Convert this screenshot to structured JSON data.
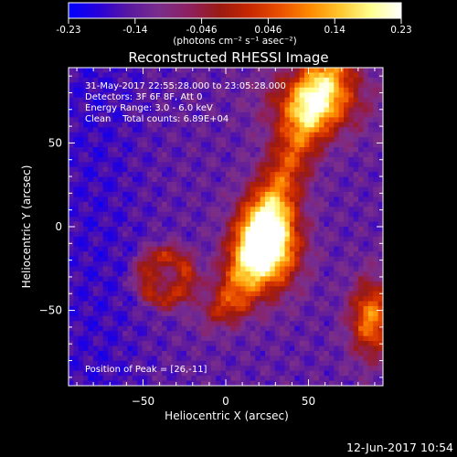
{
  "colorbar": {
    "ticks": [
      "-0.23",
      "-0.14",
      "-0.046",
      "0.046",
      "0.14",
      "0.23"
    ],
    "unit_label": "(photons cm⁻² s⁻¹ asec⁻²)",
    "colors": [
      "#0000ff",
      "#2800d8",
      "#5a18a0",
      "#7a2e8c",
      "#8e2060",
      "#9a1a12",
      "#c82800",
      "#ea5000",
      "#ff8a00",
      "#ffc830",
      "#ffff90",
      "#ffffff"
    ]
  },
  "chart_data": {
    "type": "heatmap",
    "title": "Reconstructed RHESSI Image",
    "xlabel": "Heliocentric X (arcsec)",
    "ylabel": "Heliocentric Y (arcsec)",
    "xlim": [
      -95,
      95
    ],
    "ylim": [
      -95,
      95
    ],
    "xticks": [
      -50,
      0,
      50
    ],
    "yticks": [
      50,
      0,
      -50
    ],
    "xtick_labels": [
      "−50",
      "0",
      "50"
    ],
    "ytick_labels": [
      "50",
      "0",
      "−50"
    ],
    "vmin": -0.23,
    "vmax": 0.23,
    "peak": [
      26,
      -11
    ],
    "annotations": {
      "time": "31-May-2017 22:55:28.000 to 23:05:28.000",
      "detectors": "Detectors: 3F 6F 8F, Att 0",
      "energy": "Energy Range: 3.0 - 6.0 keV",
      "clean": "Clean    Total counts: 6.89E+04",
      "peak_text": "Position of Peak = [26,-11]"
    }
  },
  "footer": {
    "date": "12-Jun-2017 10:54"
  }
}
